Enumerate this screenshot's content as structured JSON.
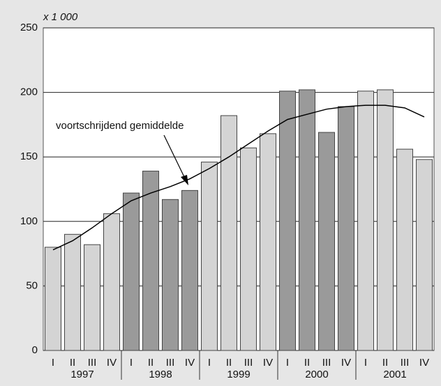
{
  "chart_data": {
    "type": "bar",
    "y_unit_label": "x 1 000",
    "categories": [
      "I",
      "II",
      "III",
      "IV",
      "I",
      "II",
      "III",
      "IV",
      "I",
      "II",
      "III",
      "IV",
      "I",
      "II",
      "III",
      "IV",
      "I",
      "II",
      "III",
      "IV"
    ],
    "groups": [
      {
        "label": "1997",
        "color": "#d4d4d4"
      },
      {
        "label": "1998",
        "color": "#9a9a9a"
      },
      {
        "label": "1999",
        "color": "#d4d4d4"
      },
      {
        "label": "2000",
        "color": "#9a9a9a"
      },
      {
        "label": "2001",
        "color": "#d4d4d4"
      }
    ],
    "values": [
      80,
      90,
      82,
      106,
      122,
      139,
      117,
      124,
      146,
      182,
      157,
      168,
      201,
      202,
      169,
      189,
      201,
      202,
      156,
      148
    ],
    "series": [
      {
        "name": "voortschrijdend gemiddelde",
        "color": "#000000",
        "values": [
          78,
          85,
          95,
          106,
          116,
          122,
          127,
          133,
          141,
          150,
          160,
          170,
          179,
          183,
          187,
          189,
          190,
          190,
          188,
          181
        ]
      }
    ],
    "ylim": [
      0,
      250
    ],
    "yticks": [
      0,
      50,
      100,
      150,
      200,
      250
    ],
    "grid": true
  }
}
